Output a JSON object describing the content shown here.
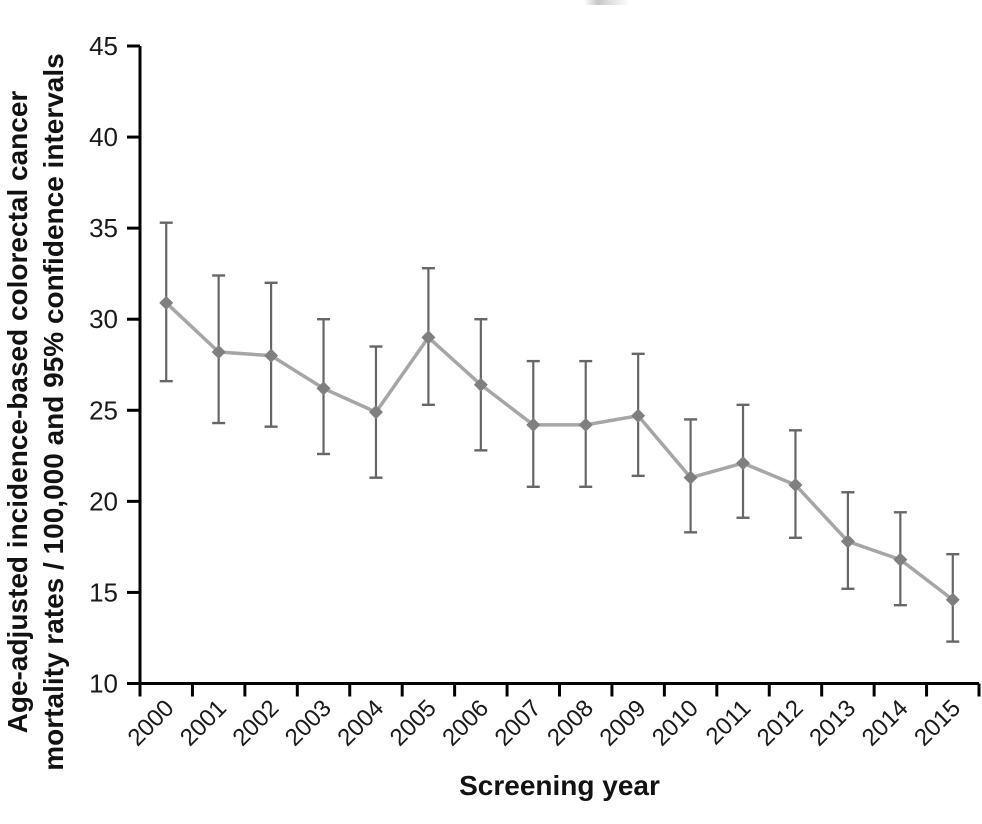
{
  "figure": {
    "xlabel": "Screening year",
    "ylabel_line1": "Age-adjusted incidence-based colorectal cancer",
    "ylabel_line2": "mortality rates / 100,000 and 95% confidence intervals"
  },
  "chart_data": {
    "type": "line",
    "title": "",
    "xlabel": "Screening year",
    "ylabel": "Age-adjusted incidence-based colorectal cancer mortality rates / 100,000 and 95% confidence intervals",
    "categories": [
      "2000",
      "2001",
      "2002",
      "2003",
      "2004",
      "2005",
      "2006",
      "2007",
      "2008",
      "2009",
      "2010",
      "2011",
      "2012",
      "2013",
      "2014",
      "2015"
    ],
    "series": [
      {
        "name": "Age-adjusted incidence-based colorectal cancer mortality rate",
        "values": [
          30.9,
          28.2,
          28.0,
          26.2,
          24.9,
          29.0,
          26.4,
          24.2,
          24.2,
          24.7,
          21.3,
          22.1,
          20.9,
          17.8,
          16.8,
          14.6
        ],
        "ci_upper": [
          35.3,
          32.4,
          32.0,
          30.0,
          28.5,
          32.8,
          30.0,
          27.7,
          27.7,
          28.1,
          24.5,
          25.3,
          23.9,
          20.5,
          19.4,
          17.1
        ],
        "ci_lower": [
          26.6,
          24.3,
          24.1,
          22.6,
          21.3,
          25.3,
          22.8,
          20.8,
          20.8,
          21.4,
          18.3,
          19.1,
          18.0,
          15.2,
          14.3,
          12.3
        ]
      }
    ],
    "ylim": [
      10,
      45
    ],
    "yticks": [
      10,
      15,
      20,
      25,
      30,
      35,
      40,
      45
    ],
    "grid": false,
    "legend": "none",
    "marker": "diamond",
    "x_tick_style": "boundary-ticks-rotated-labels",
    "colors": {
      "line": "#a6a6a6",
      "marker": "#7f7f7f",
      "error_bar": "#666666",
      "axis": "#000000",
      "tick_label": "#1a1a1a"
    }
  }
}
